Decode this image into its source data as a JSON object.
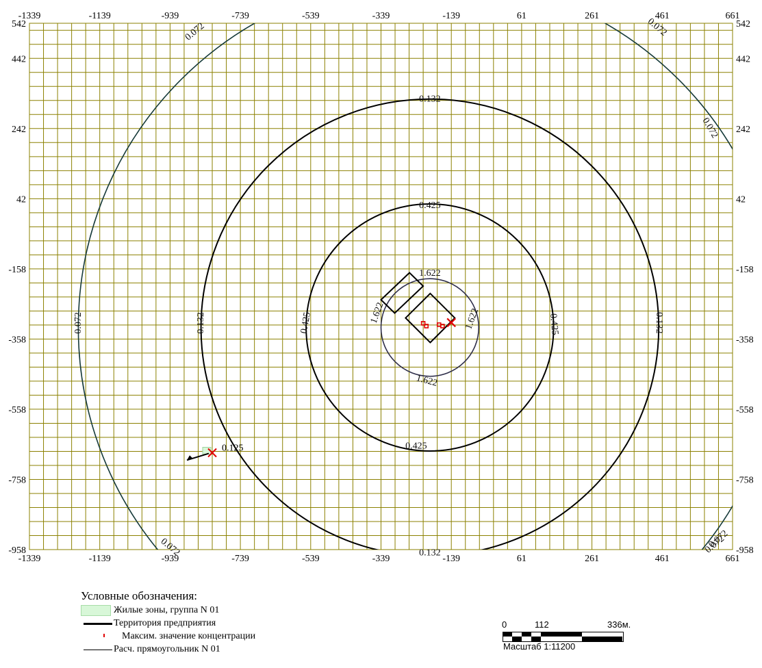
{
  "map": {
    "x_ticks": [
      "-1339",
      "-1139",
      "-939",
      "-739",
      "-539",
      "-339",
      "-139",
      "61",
      "261",
      "461",
      "661"
    ],
    "y_ticks": [
      "542",
      "442",
      "242",
      "42",
      "-158",
      "-358",
      "-558",
      "-758",
      "-958"
    ],
    "x_range": [
      -1339,
      661
    ],
    "y_range": [
      -958,
      542
    ],
    "grid_step": 40,
    "colors": {
      "grid": "#8b8000",
      "contour_outer": "#163a3a",
      "contour": "#000000",
      "contour_inner": "#2e2e4a",
      "marker": "#e00000",
      "zone": "#d8f7d8"
    },
    "center": [
      -200,
      -325
    ],
    "contours": [
      {
        "value": "0.072",
        "radius": 1000,
        "color": "#163a3a"
      },
      {
        "value": "0.132",
        "radius": 651,
        "color": "#000000"
      },
      {
        "value": "0.425",
        "radius": 352,
        "color": "#000000"
      },
      {
        "value": "1.622",
        "radius": 139,
        "color": "#2e2e4a"
      }
    ],
    "contour_labels": [
      {
        "text": "0.072",
        "x": -868,
        "y": 517,
        "rot": -40
      },
      {
        "text": "0.072",
        "x": 446,
        "y": 530,
        "rot": 40
      },
      {
        "text": "0.072",
        "x": 596,
        "y": 243,
        "rot": 60
      },
      {
        "text": "0.072",
        "x": -1199,
        "y": -312,
        "rot": -90
      },
      {
        "text": "0.072",
        "x": -939,
        "y": -952,
        "rot": 40
      },
      {
        "text": "0.072",
        "x": 621,
        "y": -929,
        "rot": -40
      },
      {
        "text": "0.072",
        "x": 611,
        "y": -944,
        "rot": -40
      },
      {
        "text": "0.132",
        "x": -200,
        "y": 325,
        "rot": 0
      },
      {
        "text": "0.132",
        "x": -851,
        "y": -312,
        "rot": -90
      },
      {
        "text": "0.132",
        "x": 451,
        "y": -312,
        "rot": 90
      },
      {
        "text": "0.132",
        "x": -200,
        "y": -968,
        "rot": 0
      },
      {
        "text": "0.425",
        "x": -200,
        "y": 22,
        "rot": 0
      },
      {
        "text": "0.425",
        "x": -552,
        "y": -312,
        "rot": -80
      },
      {
        "text": "0.425",
        "x": 152,
        "y": -316,
        "rot": 85
      },
      {
        "text": "0.425",
        "x": -239,
        "y": -664,
        "rot": 0
      },
      {
        "text": "1.622",
        "x": -200,
        "y": -171,
        "rot": 0
      },
      {
        "text": "1.622",
        "x": -349,
        "y": -284,
        "rot": -70
      },
      {
        "text": "1.622",
        "x": -79,
        "y": -301,
        "rot": -70
      },
      {
        "text": "1.622",
        "x": -209,
        "y": -478,
        "rot": 15
      }
    ],
    "sites": [
      {
        "points": [
          [
            -258,
            -169
          ],
          [
            -339,
            -246
          ],
          [
            -300,
            -284
          ],
          [
            -219,
            -207
          ]
        ]
      },
      {
        "points": [
          [
            -199,
            -228
          ],
          [
            -129,
            -298
          ],
          [
            -199,
            -368
          ],
          [
            -269,
            -298
          ]
        ]
      }
    ],
    "sources": [
      [
        -219,
        -313
      ],
      [
        -210,
        -321
      ],
      [
        -174,
        -317
      ],
      [
        -164,
        -321
      ]
    ],
    "max_marker": {
      "x": -139,
      "y": -311
    },
    "receptor": {
      "x": -819,
      "y": -682,
      "value": "0.125"
    },
    "wind_arrow": {
      "from": [
        -829,
        -684
      ],
      "to": [
        -891,
        -703
      ]
    }
  },
  "legend": {
    "title": "Условные обозначения:",
    "items": [
      {
        "label": "Жилые зоны, группа N 01"
      },
      {
        "label": "Территория предприятия"
      },
      {
        "label": "Максим. значение концентрации"
      },
      {
        "label": "Расч. прямоугольник N 01"
      }
    ]
  },
  "scale": {
    "labels": [
      "0",
      "112",
      "336м."
    ],
    "caption": "Масштаб 1:11200"
  }
}
